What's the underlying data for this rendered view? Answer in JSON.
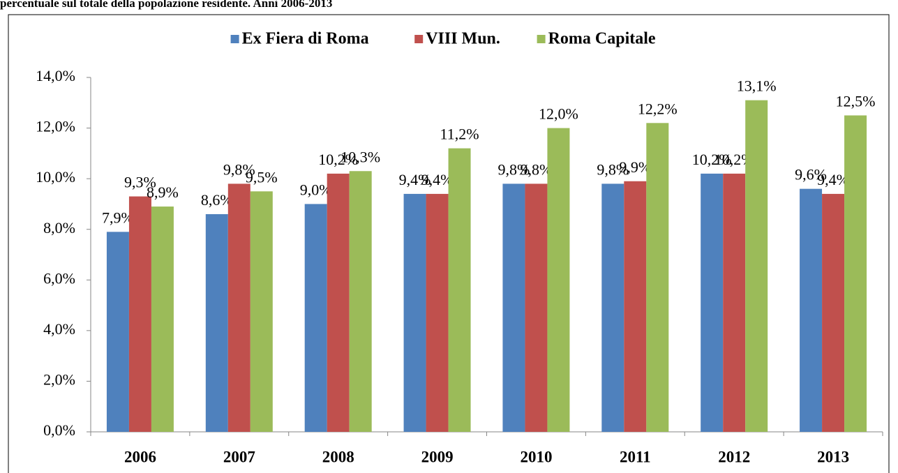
{
  "chart_data": {
    "type": "bar",
    "title": "percentuale sul totale della popolazione residente. Anni 2006-2013",
    "categories": [
      "2006",
      "2007",
      "2008",
      "2009",
      "2010",
      "2011",
      "2012",
      "2013"
    ],
    "series": [
      {
        "name": "Ex Fiera di Roma",
        "color": "#4f81bd",
        "values": [
          7.9,
          8.6,
          9.0,
          9.4,
          9.8,
          9.8,
          10.2,
          9.6
        ],
        "value_labels": [
          "7,9%",
          "8,6%",
          "9,0%",
          "9,4%",
          "9,8%",
          "9,8%",
          "10,2%",
          "9,6%"
        ]
      },
      {
        "name": "VIII Mun.",
        "color": "#c0504d",
        "values": [
          9.3,
          9.8,
          10.2,
          9.4,
          9.8,
          9.9,
          10.2,
          9.4
        ],
        "value_labels": [
          "9,3%",
          "9,8%",
          "10,2%",
          "9,4%",
          "9,8%",
          "9,9%",
          "10,2%",
          "9,4%"
        ]
      },
      {
        "name": "Roma Capitale",
        "color": "#9bbb59",
        "values": [
          8.9,
          9.5,
          10.3,
          11.2,
          12.0,
          12.2,
          13.1,
          12.5
        ],
        "value_labels": [
          "8,9%",
          "9,5%",
          "10,3%",
          "11,2%",
          "12,0%",
          "12,2%",
          "13,1%",
          "12,5%"
        ]
      }
    ],
    "ylim": [
      0,
      14
    ],
    "yticks": [
      {
        "value": 0,
        "label": "0,0%"
      },
      {
        "value": 2,
        "label": "2,0%"
      },
      {
        "value": 4,
        "label": "4,0%"
      },
      {
        "value": 6,
        "label": "6,0%"
      },
      {
        "value": 8,
        "label": "8,0%"
      },
      {
        "value": 10,
        "label": "10,0%"
      },
      {
        "value": 12,
        "label": "12,0%"
      },
      {
        "value": 14,
        "label": "14,0%"
      }
    ],
    "legend": "top",
    "grid": false
  }
}
